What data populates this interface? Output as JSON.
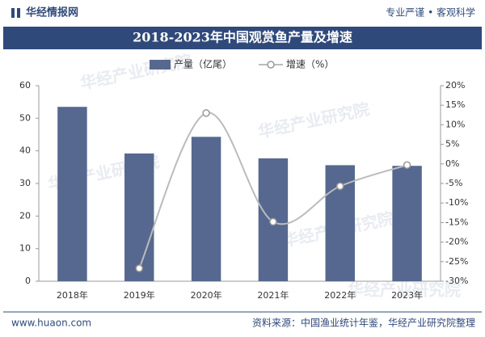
{
  "header": {
    "logo": "华经情报网",
    "slogan": "专业严谨 • 客观科学"
  },
  "watermark": "华经产业研究院",
  "footer": {
    "website": "www.huaon.com",
    "source": "资料来源：中国渔业统计年鉴，华经产业研究院整理"
  },
  "chart_data": {
    "type": "bar",
    "title": "2018-2023年中国观赏鱼产量及增速",
    "categories": [
      "2018年",
      "2019年",
      "2020年",
      "2021年",
      "2022年",
      "2023年"
    ],
    "series": [
      {
        "name": "产量（亿尾）",
        "type": "bar",
        "color": "#56688f",
        "values": [
          53.5,
          39.2,
          44.3,
          37.7,
          35.6,
          35.4
        ]
      },
      {
        "name": "增速（%）",
        "type": "line",
        "axis": "y2",
        "color": "#bbbbbb",
        "values": [
          null,
          -26.7,
          13.0,
          -14.8,
          -5.7,
          -0.3
        ]
      }
    ],
    "ylim": [
      0,
      60
    ],
    "yticks": [
      0,
      10,
      20,
      30,
      40,
      50,
      60
    ],
    "y2lim": [
      -30,
      20
    ],
    "y2ticks": [
      {
        "value": -30,
        "label": "-30%"
      },
      {
        "value": -25,
        "label": "-25%"
      },
      {
        "value": -20,
        "label": "-20%"
      },
      {
        "value": -15,
        "label": "-15%"
      },
      {
        "value": -10,
        "label": "-10%"
      },
      {
        "value": -5,
        "label": "-5%"
      },
      {
        "value": 0,
        "label": "0%"
      },
      {
        "value": 5,
        "label": "5%"
      },
      {
        "value": 10,
        "label": "10%"
      },
      {
        "value": 15,
        "label": "15%"
      },
      {
        "value": 20,
        "label": "20%"
      }
    ],
    "legend": "top"
  }
}
